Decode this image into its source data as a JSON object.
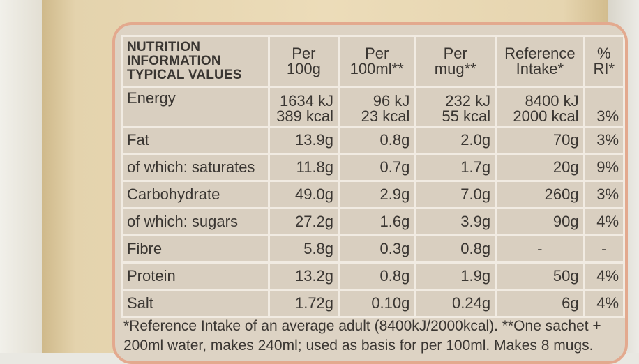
{
  "table": {
    "header": {
      "label_lines": [
        "NUTRITION",
        "INFORMATION",
        "TYPICAL VALUES"
      ],
      "per_100g": [
        "Per",
        "100g"
      ],
      "per_100ml": [
        "Per",
        "100ml**"
      ],
      "per_mug": [
        "Per",
        "mug**"
      ],
      "reference_intake": [
        "Reference",
        "Intake*"
      ],
      "percent_ri": [
        "%",
        "RI*"
      ]
    },
    "energy": {
      "name": "Energy",
      "per_100g": [
        "1634 kJ",
        "389 kcal"
      ],
      "per_100ml": [
        "96 kJ",
        "23 kcal"
      ],
      "per_mug": [
        "232 kJ",
        "55 kcal"
      ],
      "reference_intake": [
        "8400 kJ",
        "2000 kcal"
      ],
      "percent_ri": "3%"
    },
    "rows": [
      {
        "name": "Fat",
        "per_100g": "13.9g",
        "per_100ml": "0.8g",
        "per_mug": "2.0g",
        "reference_intake": "70g",
        "percent_ri": "3%"
      },
      {
        "name": "of which: saturates",
        "per_100g": "11.8g",
        "per_100ml": "0.7g",
        "per_mug": "1.7g",
        "reference_intake": "20g",
        "percent_ri": "9%"
      },
      {
        "name": "Carbohydrate",
        "per_100g": "49.0g",
        "per_100ml": "2.9g",
        "per_mug": "7.0g",
        "reference_intake": "260g",
        "percent_ri": "3%"
      },
      {
        "name": "of which: sugars",
        "per_100g": "27.2g",
        "per_100ml": "1.6g",
        "per_mug": "3.9g",
        "reference_intake": "90g",
        "percent_ri": "4%"
      },
      {
        "name": "Fibre",
        "per_100g": "5.8g",
        "per_100ml": "0.3g",
        "per_mug": "0.8g",
        "reference_intake": "-",
        "percent_ri": "-"
      },
      {
        "name": "Protein",
        "per_100g": "13.2g",
        "per_100ml": "0.8g",
        "per_mug": "1.9g",
        "reference_intake": "50g",
        "percent_ri": "4%"
      },
      {
        "name": "Salt",
        "per_100g": "1.72g",
        "per_100ml": "0.10g",
        "per_mug": "0.24g",
        "reference_intake": "6g",
        "percent_ri": "4%"
      }
    ]
  },
  "footnote": {
    "line1": "*Reference Intake of an average adult (8400kJ/2000kcal). **One sachet +",
    "line2": "200ml water, makes 240ml; used as basis for per 100ml. Makes 8 mugs."
  },
  "colors": {
    "panel_border": "#e3a98e",
    "cell_background": "#d9cfc0",
    "grid_lines": "#f1ebe2",
    "text": "#3a3632",
    "packaging": "#e4d3ad"
  }
}
